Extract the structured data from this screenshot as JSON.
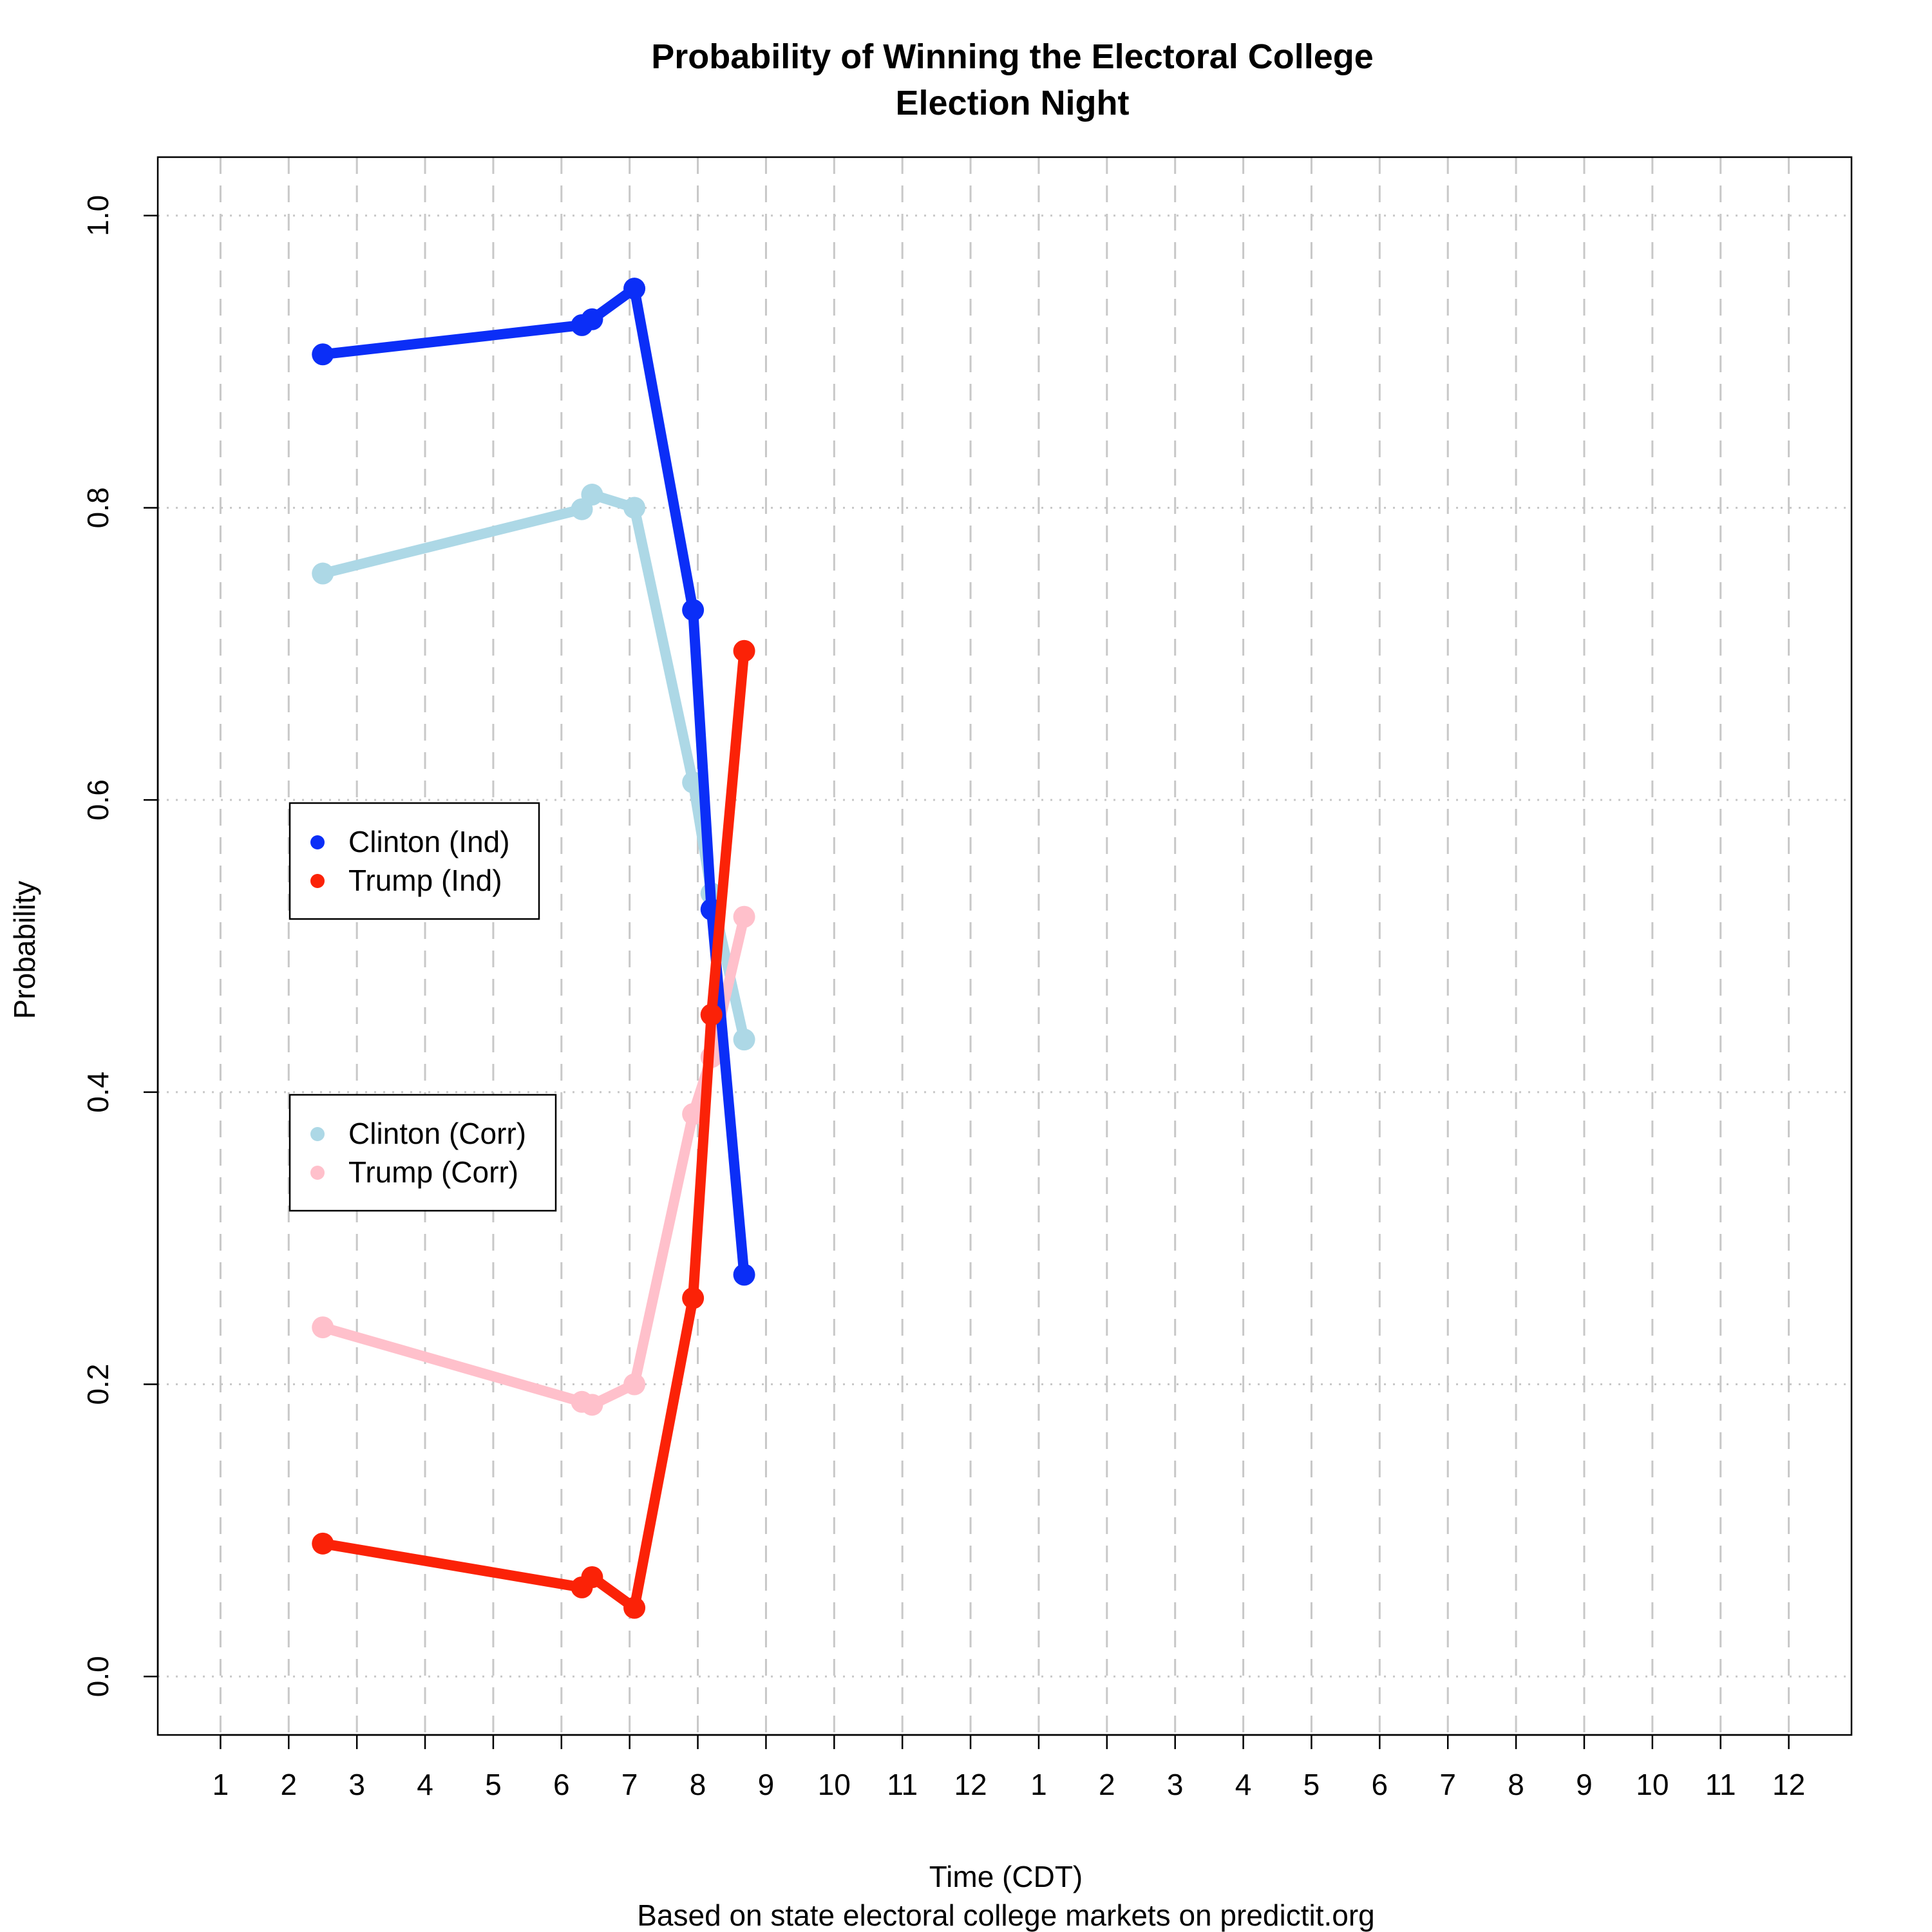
{
  "chart_data": {
    "type": "line",
    "title": "Probability of Winning the Electoral College",
    "subtitle": "Election Night",
    "xlabel": "Time (CDT)",
    "xlabel2": "Based on state electoral college markets on predictit.org",
    "ylabel": "Probability",
    "xlim": [
      0.08,
      24.92
    ],
    "ylim": [
      -0.04,
      1.04
    ],
    "x_ticks": [
      1,
      2,
      3,
      4,
      5,
      6,
      7,
      8,
      9,
      10,
      11,
      12,
      13,
      14,
      15,
      16,
      17,
      18,
      19,
      20,
      21,
      22,
      23,
      24
    ],
    "x_tick_labels": [
      "1",
      "2",
      "3",
      "4",
      "5",
      "6",
      "7",
      "8",
      "9",
      "10",
      "11",
      "12",
      "1",
      "2",
      "3",
      "4",
      "5",
      "6",
      "7",
      "8",
      "9",
      "10",
      "11",
      "12"
    ],
    "y_ticks": [
      0.0,
      0.2,
      0.4,
      0.6,
      0.8,
      1.0
    ],
    "y_tick_labels": [
      "0.0",
      "0.2",
      "0.4",
      "0.6",
      "0.8",
      "1.0"
    ],
    "grid": true,
    "series": [
      {
        "name": "Clinton (Corr)",
        "color": "#add8e6",
        "x": [
          2.5,
          6.3,
          6.45,
          7.07,
          7.93,
          8.2,
          8.68
        ],
        "y": [
          0.755,
          0.799,
          0.809,
          0.8,
          0.612,
          0.536,
          0.436
        ]
      },
      {
        "name": "Trump (Corr)",
        "color": "#ffc0cb",
        "x": [
          2.5,
          6.3,
          6.45,
          7.07,
          7.93,
          8.2,
          8.68
        ],
        "y": [
          0.239,
          0.188,
          0.186,
          0.2,
          0.385,
          0.424,
          0.52
        ]
      },
      {
        "name": "Clinton (Ind)",
        "color": "#0b2ef7",
        "x": [
          2.5,
          6.3,
          6.45,
          7.07,
          7.93,
          8.2,
          8.68
        ],
        "y": [
          0.905,
          0.925,
          0.929,
          0.95,
          0.73,
          0.525,
          0.275
        ]
      },
      {
        "name": "Trump (Ind)",
        "color": "#fb2207",
        "x": [
          2.5,
          6.3,
          6.45,
          7.07,
          7.93,
          8.2,
          8.68
        ],
        "y": [
          0.091,
          0.061,
          0.068,
          0.047,
          0.259,
          0.453,
          0.702
        ]
      }
    ],
    "legends": [
      {
        "placement": "left-middle",
        "entries": [
          "Clinton (Ind)",
          "Trump (Ind)"
        ]
      },
      {
        "placement": "left-lower",
        "entries": [
          "Clinton (Corr)",
          "Trump (Corr)"
        ]
      }
    ]
  }
}
